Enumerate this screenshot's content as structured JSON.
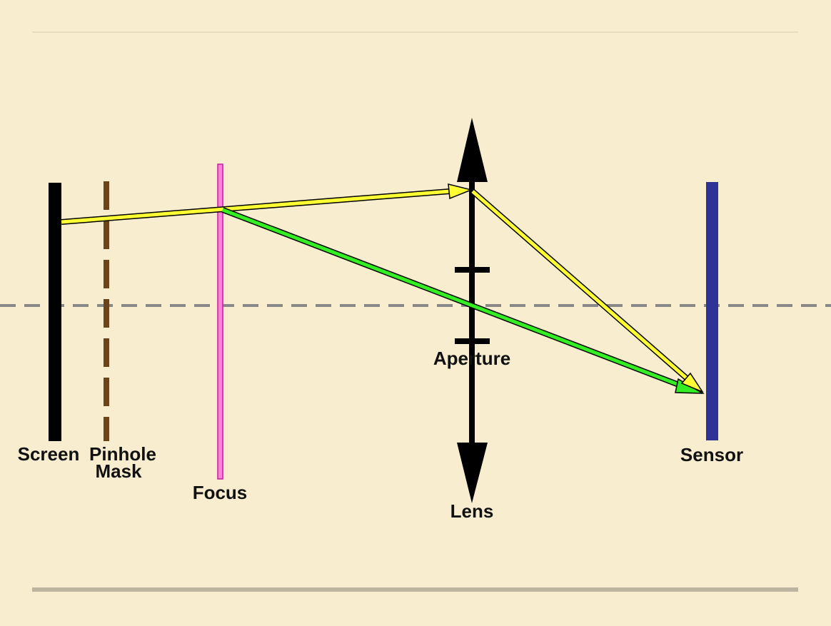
{
  "diagram": {
    "labels": {
      "screen": "Screen",
      "pinhole_line1": "Pinhole",
      "pinhole_line2": "Mask",
      "focus": "Focus",
      "aperture": "Aperture",
      "lens": "Lens",
      "sensor": "Sensor"
    },
    "colors": {
      "background": "#f8edcf",
      "screen": "#000000",
      "pinhole_mask": "#6b4519",
      "focus_plane": "#ff80d8",
      "sensor": "#2e3495",
      "optical_axis": "#888888",
      "ray_yellow": "#ffff33",
      "ray_green": "#33ee22",
      "lens": "#000000",
      "rule_top": "#d8ccab",
      "rule_bottom": "#bdb4a0"
    }
  }
}
